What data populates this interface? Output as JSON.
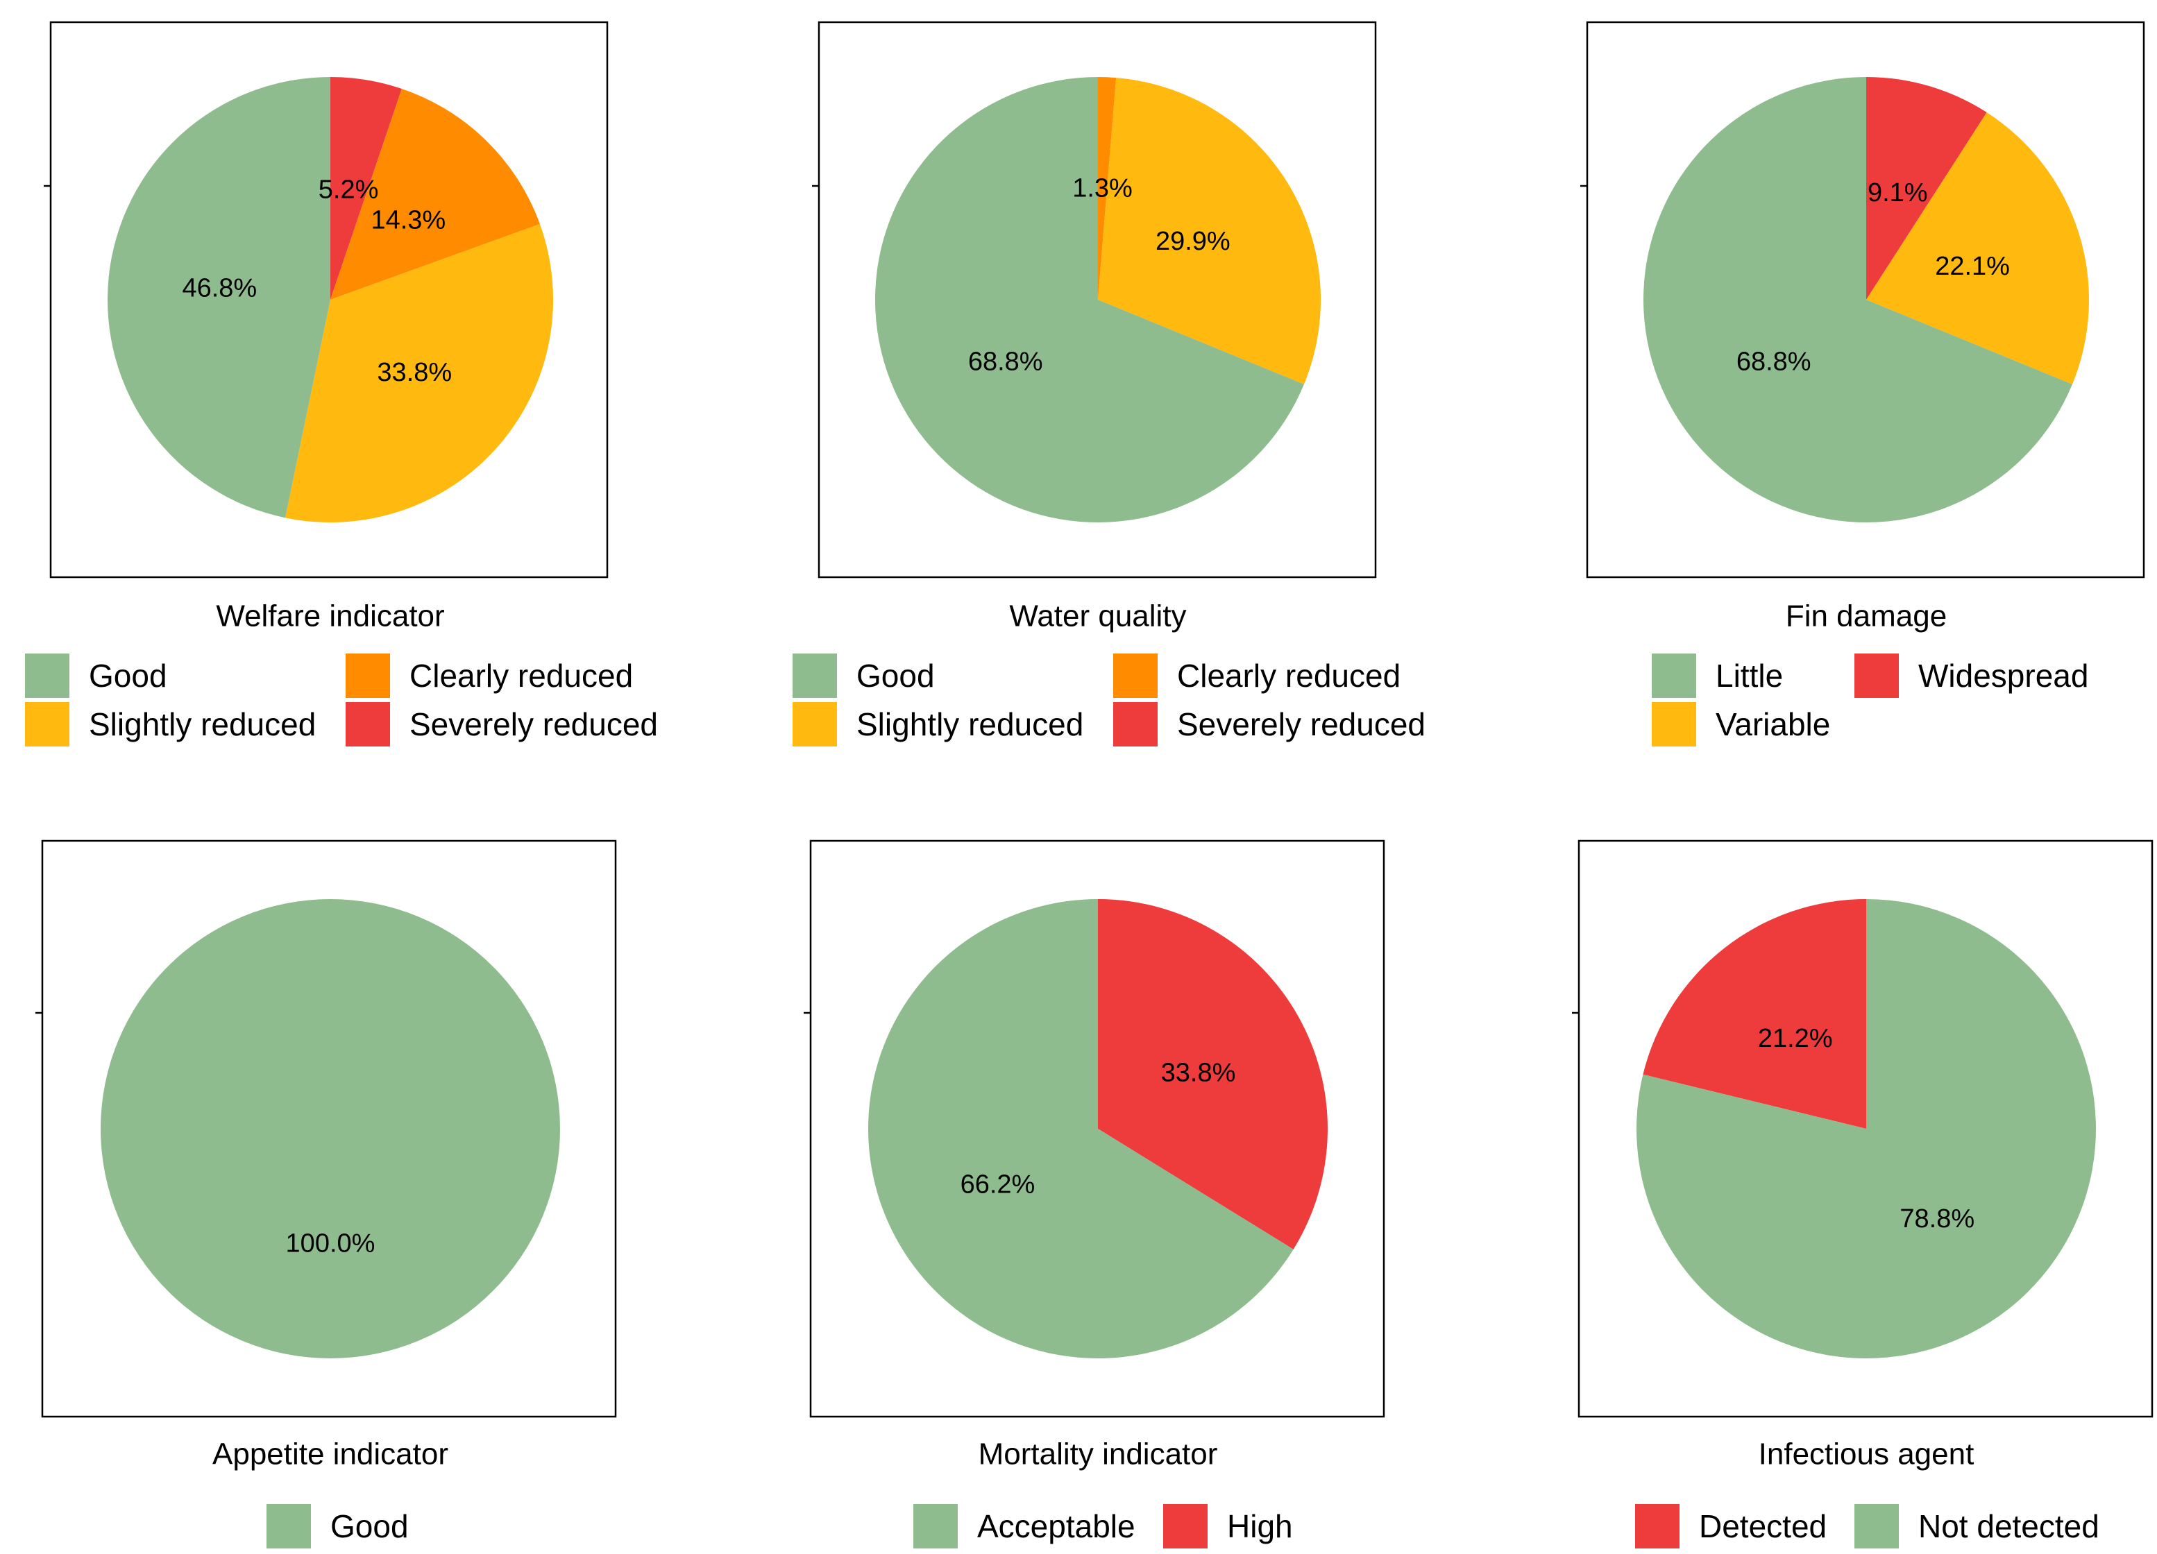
{
  "palette": {
    "good": "#8fbc8f",
    "slightly_reduced": "#ffb90f",
    "clearly_reduced": "#ff8c00",
    "severely_reduced": "#ee3b3b"
  },
  "chart_data": [
    {
      "type": "pie",
      "title": "Welfare indicator",
      "slices": [
        {
          "label": "Severely reduced",
          "value": 5.2,
          "pct": "5.2%",
          "color": "#ee3b3b"
        },
        {
          "label": "Clearly reduced",
          "value": 14.3,
          "pct": "14.3%",
          "color": "#ff8c00"
        },
        {
          "label": "Slightly reduced",
          "value": 33.8,
          "pct": "33.8%",
          "color": "#ffb90f"
        },
        {
          "label": "Good",
          "value": 46.8,
          "pct": "46.8%",
          "color": "#8fbc8f"
        }
      ],
      "legend": [
        {
          "label": "Good",
          "color": "#8fbc8f"
        },
        {
          "label": "Clearly reduced",
          "color": "#ff8c00"
        },
        {
          "label": "Slightly reduced",
          "color": "#ffb90f"
        },
        {
          "label": "Severely reduced",
          "color": "#ee3b3b"
        }
      ]
    },
    {
      "type": "pie",
      "title": "Water quality",
      "slices": [
        {
          "label": "Clearly reduced",
          "value": 1.3,
          "pct": "1.3%",
          "color": "#ff8c00"
        },
        {
          "label": "Slightly reduced",
          "value": 29.9,
          "pct": "29.9%",
          "color": "#ffb90f"
        },
        {
          "label": "Good",
          "value": 68.8,
          "pct": "68.8%",
          "color": "#8fbc8f"
        }
      ],
      "legend": [
        {
          "label": "Good",
          "color": "#8fbc8f"
        },
        {
          "label": "Clearly reduced",
          "color": "#ff8c00"
        },
        {
          "label": "Slightly reduced",
          "color": "#ffb90f"
        },
        {
          "label": "Severely reduced",
          "color": "#ee3b3b"
        }
      ]
    },
    {
      "type": "pie",
      "title": "Fin damage",
      "slices": [
        {
          "label": "Widespread",
          "value": 9.1,
          "pct": "9.1%",
          "color": "#ee3b3b"
        },
        {
          "label": "Variable",
          "value": 22.1,
          "pct": "22.1%",
          "color": "#ffb90f"
        },
        {
          "label": "Little",
          "value": 68.8,
          "pct": "68.8%",
          "color": "#8fbc8f"
        }
      ],
      "legend": [
        {
          "label": "Little",
          "color": "#8fbc8f"
        },
        {
          "label": "Widespread",
          "color": "#ee3b3b"
        },
        {
          "label": "Variable",
          "color": "#ffb90f"
        }
      ]
    },
    {
      "type": "pie",
      "title": "Appetite indicator",
      "slices": [
        {
          "label": "Good",
          "value": 100.0,
          "pct": "100.0%",
          "color": "#8fbc8f"
        }
      ],
      "legend": [
        {
          "label": "Good",
          "color": "#8fbc8f"
        }
      ]
    },
    {
      "type": "pie",
      "title": "Mortality indicator",
      "slices": [
        {
          "label": "High",
          "value": 33.8,
          "pct": "33.8%",
          "color": "#ee3b3b"
        },
        {
          "label": "Acceptable",
          "value": 66.2,
          "pct": "66.2%",
          "color": "#8fbc8f"
        }
      ],
      "legend": [
        {
          "label": "Acceptable",
          "color": "#8fbc8f"
        },
        {
          "label": "High",
          "color": "#ee3b3b"
        }
      ]
    },
    {
      "type": "pie",
      "title": "Infectious agent",
      "start_offset_pct": -21.2,
      "slices": [
        {
          "label": "Detected",
          "value": 21.2,
          "pct": "21.2%",
          "color": "#ee3b3b"
        },
        {
          "label": "Not detected",
          "value": 78.8,
          "pct": "78.8%",
          "color": "#8fbc8f"
        }
      ],
      "legend": [
        {
          "label": "Detected",
          "color": "#ee3b3b"
        },
        {
          "label": "Not detected",
          "color": "#8fbc8f"
        }
      ]
    }
  ]
}
